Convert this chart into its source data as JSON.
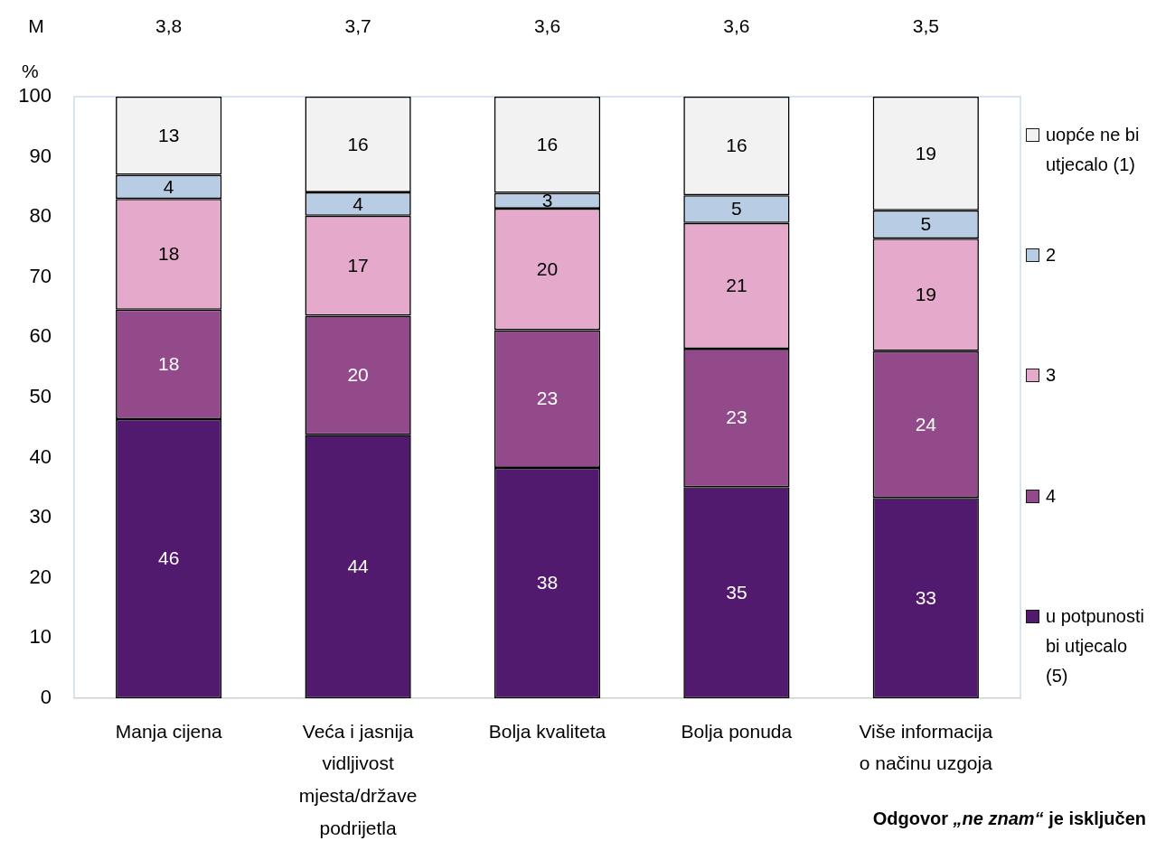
{
  "chart_data": {
    "type": "bar",
    "stacked": true,
    "ylabel": "%",
    "categories": [
      "Manja cijena",
      "Veća i jasnija vidljivost mjesta/države podrijetla",
      "Bolja kvaliteta",
      "Bolja ponuda",
      "Više informacija o načinu uzgoja"
    ],
    "series": [
      {
        "name": "u potpunosti bi utjecalo (5)",
        "color": "#521a6e",
        "values": [
          46.4,
          43.8,
          38.3,
          35.1,
          33.3
        ],
        "value_labels": [
          "46",
          "44",
          "38",
          "35",
          "33"
        ]
      },
      {
        "name": "4",
        "color": "#934a8b",
        "values": [
          18.2,
          19.8,
          22.9,
          23.0,
          24.4
        ],
        "value_labels": [
          "18",
          "20",
          "23",
          "23",
          "24"
        ]
      },
      {
        "name": "3",
        "color": "#e5aacb",
        "values": [
          18.4,
          16.6,
          20.2,
          20.9,
          18.7
        ],
        "value_labels": [
          "18",
          "17",
          "20",
          "21",
          "19"
        ]
      },
      {
        "name": "2",
        "color": "#b8cce4",
        "values": [
          4.0,
          3.9,
          2.6,
          4.6,
          4.7
        ],
        "value_labels": [
          "4",
          "4",
          "3",
          "5",
          "5"
        ]
      },
      {
        "name": "uopće ne bi utjecalo (1)",
        "color": "#f2f2f2",
        "values": [
          13.0,
          15.9,
          16.0,
          16.4,
          18.9
        ],
        "value_labels": [
          "13",
          "16",
          "16",
          "16",
          "19"
        ]
      }
    ],
    "ylim": [
      0,
      100
    ],
    "yticks": [
      0,
      10,
      20,
      30,
      40,
      50,
      60,
      70,
      80,
      90,
      100
    ],
    "legend": "right",
    "annotations": [
      "M",
      "3,8",
      "3,7",
      "3,6",
      "3,6",
      "3,5",
      "Odgovor „ne znam“ je isključen"
    ]
  }
}
